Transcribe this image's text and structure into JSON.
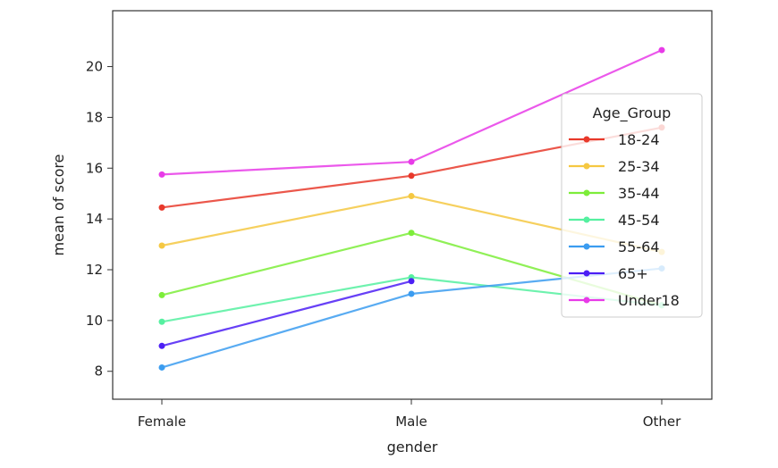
{
  "chart_data": {
    "type": "line",
    "categories": [
      "Female",
      "Male",
      "Other"
    ],
    "xlabel": "gender",
    "ylabel": "mean of score",
    "ylim": [
      6.9,
      22.2
    ],
    "yticks": [
      8,
      10,
      12,
      14,
      16,
      18,
      20
    ],
    "grid": false,
    "legend": {
      "title": "Age_Group",
      "placement": "right"
    },
    "series": [
      {
        "name": "18-24",
        "color": "#e8392b",
        "values": [
          14.45,
          15.7,
          17.6
        ]
      },
      {
        "name": "25-34",
        "color": "#f5c842",
        "values": [
          12.95,
          14.9,
          12.7
        ]
      },
      {
        "name": "35-44",
        "color": "#7ded3a",
        "values": [
          11.0,
          13.45,
          10.6
        ]
      },
      {
        "name": "45-54",
        "color": "#55f0a0",
        "values": [
          9.95,
          11.7,
          10.6
        ]
      },
      {
        "name": "55-64",
        "color": "#3b9cf0",
        "values": [
          8.15,
          11.05,
          12.05
        ]
      },
      {
        "name": "65+",
        "color": "#4c1ff5",
        "values": [
          9.0,
          11.55,
          null
        ]
      },
      {
        "name": "Under18",
        "color": "#e83be8",
        "values": [
          15.75,
          16.25,
          20.65
        ]
      }
    ]
  }
}
